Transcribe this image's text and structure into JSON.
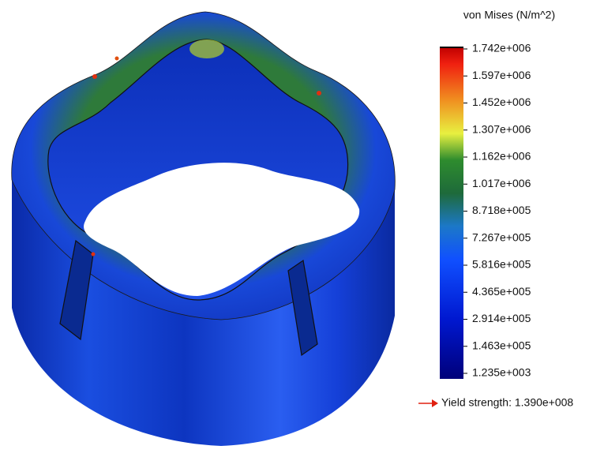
{
  "legend": {
    "title": "von Mises (N/m^2)",
    "labels": [
      "1.742e+006",
      "1.597e+006",
      "1.452e+006",
      "1.307e+006",
      "1.162e+006",
      "1.017e+006",
      "8.718e+005",
      "7.267e+005",
      "5.816e+005",
      "4.365e+005",
      "2.914e+005",
      "1.463e+005",
      "1.235e+003"
    ],
    "yield": "Yield strength: 1.390e+008"
  }
}
